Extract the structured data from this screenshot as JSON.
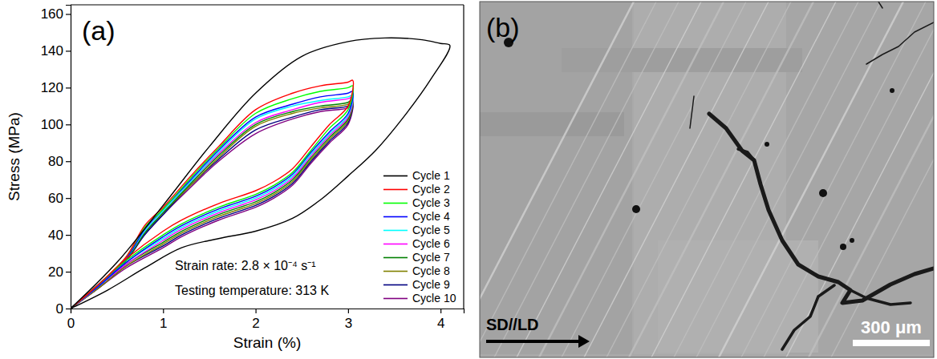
{
  "chart_data": {
    "type": "line",
    "panel_label": "(a)",
    "x_label": "Strain (%)",
    "y_label": "Stress (MPa)",
    "annotations": [
      "Strain rate: 2.8 × 10⁻⁴ s⁻¹",
      "Testing temperature: 313 K"
    ],
    "xlim": [
      0,
      4.25
    ],
    "ylim": [
      0,
      165
    ],
    "xticks": [
      0,
      1,
      2,
      3,
      4
    ],
    "yticks": [
      0,
      20,
      40,
      60,
      80,
      100,
      120,
      140,
      160
    ],
    "legend": "right",
    "grid": false,
    "series": [
      {
        "name": "Cycle 1",
        "color": "#000000",
        "x": [
          0,
          0.5,
          1.0,
          1.5,
          2.0,
          2.5,
          3.0,
          3.4,
          3.8,
          4.0,
          4.1,
          3.9,
          3.6,
          3.3,
          3.0,
          2.7,
          2.4,
          2.0,
          1.6,
          1.2,
          0.8,
          0.4,
          0
        ],
        "values": [
          0,
          25,
          56,
          88,
          117,
          137,
          145,
          147,
          146,
          144,
          143,
          125,
          104,
          86,
          72,
          59,
          49,
          42,
          38,
          33,
          22,
          10,
          0
        ]
      },
      {
        "name": "Cycle 2",
        "color": "#ff0000",
        "x": [
          0,
          0.3,
          0.6,
          0.8,
          1.0,
          1.3,
          1.6,
          2.0,
          2.4,
          2.7,
          3.0,
          3.05,
          3.0,
          2.8,
          2.6,
          2.4,
          2.2,
          2.0,
          1.6,
          1.2,
          1.0,
          0.6,
          0.3,
          0
        ],
        "values": [
          0,
          13,
          28,
          45,
          55,
          72,
          88,
          108,
          117,
          121,
          123,
          124,
          110,
          100,
          88,
          76,
          69,
          64,
          57,
          48,
          42,
          27,
          13,
          0
        ]
      },
      {
        "name": "Cycle 3",
        "color": "#00ff00",
        "x": [
          0,
          0.3,
          0.6,
          0.8,
          1.0,
          1.3,
          1.6,
          2.0,
          2.4,
          2.7,
          3.0,
          3.05,
          3.0,
          2.8,
          2.6,
          2.4,
          2.2,
          2.0,
          1.6,
          1.2,
          1.0,
          0.6,
          0.3,
          0
        ],
        "values": [
          0,
          13,
          28,
          44,
          54,
          71,
          87,
          106,
          114,
          118,
          120,
          121,
          108,
          98,
          86,
          74,
          67,
          62,
          55,
          46,
          40,
          26,
          13,
          0
        ]
      },
      {
        "name": "Cycle 4",
        "color": "#0000ff",
        "x": [
          0,
          0.3,
          0.6,
          0.8,
          1.0,
          1.3,
          1.6,
          2.0,
          2.4,
          2.7,
          3.0,
          3.05,
          3.0,
          2.8,
          2.6,
          2.4,
          2.2,
          2.0,
          1.6,
          1.2,
          1.0,
          0.6,
          0.3,
          0
        ],
        "values": [
          0,
          13,
          27,
          43,
          54,
          70,
          86,
          104,
          111,
          115,
          117,
          118,
          106,
          96,
          85,
          73,
          66,
          61,
          54,
          45,
          39,
          25,
          12,
          0
        ]
      },
      {
        "name": "Cycle 5",
        "color": "#00ffff",
        "x": [
          0,
          0.3,
          0.6,
          0.8,
          1.0,
          1.3,
          1.6,
          2.0,
          2.4,
          2.7,
          3.0,
          3.05,
          3.0,
          2.8,
          2.6,
          2.4,
          2.2,
          2.0,
          1.6,
          1.2,
          1.0,
          0.6,
          0.3,
          0
        ],
        "values": [
          0,
          13,
          27,
          42,
          53,
          69,
          85,
          103,
          110,
          113,
          115,
          116,
          105,
          95,
          84,
          72,
          65,
          60,
          53,
          44,
          38,
          25,
          12,
          0
        ]
      },
      {
        "name": "Cycle 6",
        "color": "#ff00ff",
        "x": [
          0,
          0.3,
          0.6,
          0.8,
          1.0,
          1.3,
          1.6,
          2.0,
          2.4,
          2.7,
          3.0,
          3.05,
          3.0,
          2.8,
          2.6,
          2.4,
          2.2,
          2.0,
          1.6,
          1.2,
          1.0,
          0.6,
          0.3,
          0
        ],
        "values": [
          0,
          12,
          27,
          42,
          53,
          69,
          84,
          101,
          108,
          112,
          114,
          115,
          104,
          94,
          83,
          71,
          64,
          59,
          52,
          43,
          37,
          24,
          12,
          0
        ]
      },
      {
        "name": "Cycle 7",
        "color": "#008000",
        "x": [
          0,
          0.3,
          0.6,
          0.8,
          1.0,
          1.3,
          1.6,
          2.0,
          2.4,
          2.7,
          3.0,
          3.05,
          3.0,
          2.8,
          2.6,
          2.4,
          2.2,
          2.0,
          1.6,
          1.2,
          1.0,
          0.6,
          0.3,
          0
        ],
        "values": [
          0,
          12,
          26,
          41,
          52,
          68,
          83,
          100,
          107,
          110,
          112,
          114,
          103,
          93,
          82,
          70,
          63,
          58,
          51,
          42,
          36,
          24,
          12,
          0
        ]
      },
      {
        "name": "Cycle 8",
        "color": "#808000",
        "x": [
          0,
          0.3,
          0.6,
          0.8,
          1.0,
          1.3,
          1.6,
          2.0,
          2.4,
          2.7,
          3.0,
          3.05,
          3.0,
          2.8,
          2.6,
          2.4,
          2.2,
          2.0,
          1.6,
          1.2,
          1.0,
          0.6,
          0.3,
          0
        ],
        "values": [
          0,
          12,
          26,
          41,
          52,
          67,
          82,
          99,
          106,
          109,
          111,
          113,
          102,
          92,
          81,
          69,
          62,
          57,
          50,
          41,
          35,
          23,
          11,
          0
        ]
      },
      {
        "name": "Cycle 9",
        "color": "#000080",
        "x": [
          0,
          0.3,
          0.6,
          0.8,
          1.0,
          1.3,
          1.6,
          2.0,
          2.4,
          2.7,
          3.0,
          3.05,
          3.0,
          2.8,
          2.6,
          2.4,
          2.2,
          2.0,
          1.6,
          1.2,
          1.0,
          0.6,
          0.3,
          0
        ],
        "values": [
          0,
          12,
          26,
          40,
          51,
          67,
          81,
          97,
          104,
          108,
          110,
          112,
          101,
          91,
          80,
          68,
          61,
          56,
          49,
          40,
          34,
          23,
          11,
          0
        ]
      },
      {
        "name": "Cycle 10",
        "color": "#800080",
        "x": [
          0,
          0.3,
          0.6,
          0.8,
          1.0,
          1.3,
          1.6,
          2.0,
          2.4,
          2.7,
          3.0,
          3.05,
          3.0,
          2.8,
          2.6,
          2.4,
          2.2,
          2.0,
          1.6,
          1.2,
          1.0,
          0.6,
          0.3,
          0
        ],
        "values": [
          0,
          12,
          26,
          40,
          51,
          66,
          80,
          95,
          103,
          107,
          109,
          111,
          100,
          90,
          79,
          67,
          60,
          55,
          48,
          39,
          33,
          22,
          11,
          0
        ]
      }
    ]
  },
  "image_panel": {
    "panel_label": "(b)",
    "direction_label": "SD//LD",
    "scale_bar_label": "300 μm"
  }
}
